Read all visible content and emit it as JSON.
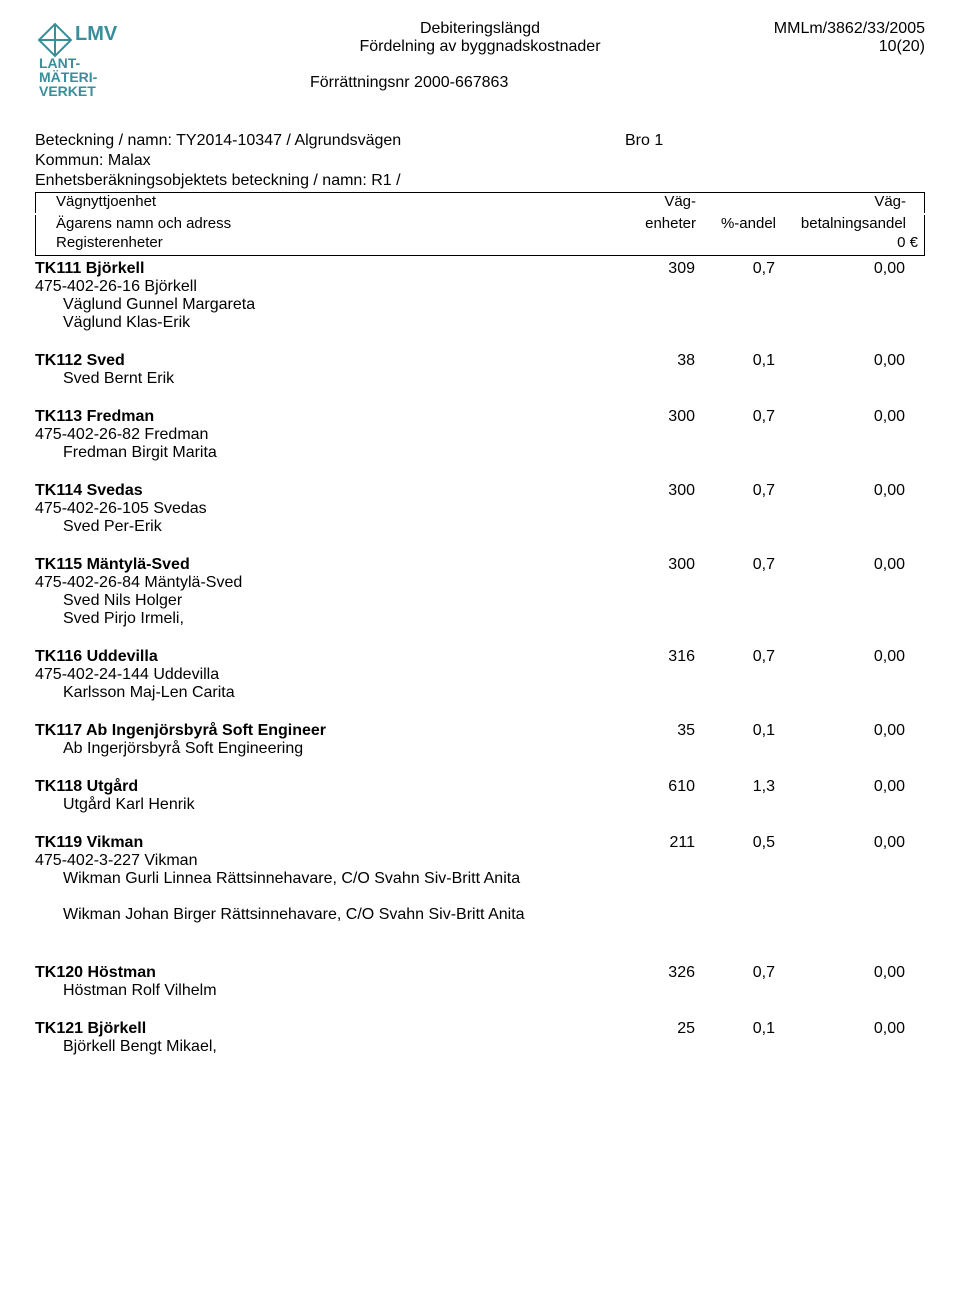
{
  "header": {
    "title1": "Debiteringslängd",
    "title2": "Fördelning av byggnadskostnader",
    "right1": "MMLm/3862/33/2005",
    "right2": "10(20)",
    "case_label": "Förrättningsnr 2000-667863"
  },
  "logo": {
    "line1": "LMV",
    "line2": "LANT-",
    "line3": "MÄTERI-",
    "line4": "VERKET",
    "text_color": "#3a8e9a",
    "shape_color": "#3a8e9a"
  },
  "meta": {
    "beteckning": "Beteckning / namn: TY2014-10347 / Algrundsvägen",
    "bro": "Bro 1",
    "kommun": "Kommun: Malax",
    "enhets": "Enhetsberäkningsobjektets beteckning / namn: R1 /",
    "header_col1a": "Vägnyttjoenhet",
    "header_col1b": "Ägarens namn och adress",
    "header_col2a": "Väg-",
    "header_col2b": "enheter",
    "header_col3a": "",
    "header_col3b": "%-andel",
    "header_col4a": "Väg-",
    "header_col4b": "betalningsandel",
    "register": "Registerenheter",
    "zero": "0 €"
  },
  "entries": [
    {
      "name": "TK111 Björkell",
      "v1": "309",
      "v2": "0,7",
      "v3": "0,00",
      "subs": [
        "475-402-26-16 Björkell"
      ],
      "indents": [
        "Väglund Gunnel Margareta",
        "Väglund Klas-Erik"
      ]
    },
    {
      "name": "TK112 Sved",
      "v1": "38",
      "v2": "0,1",
      "v3": "0,00",
      "subs": [],
      "indents": [
        "Sved Bernt Erik"
      ]
    },
    {
      "name": "TK113 Fredman",
      "v1": "300",
      "v2": "0,7",
      "v3": "0,00",
      "subs": [
        "475-402-26-82 Fredman"
      ],
      "indents": [
        "Fredman Birgit Marita"
      ]
    },
    {
      "name": "TK114 Svedas",
      "v1": "300",
      "v2": "0,7",
      "v3": "0,00",
      "subs": [
        "475-402-26-105 Svedas"
      ],
      "indents": [
        "Sved Per-Erik"
      ]
    },
    {
      "name": "TK115 Mäntylä-Sved",
      "v1": "300",
      "v2": "0,7",
      "v3": "0,00",
      "subs": [
        "475-402-26-84 Mäntylä-Sved"
      ],
      "indents": [
        "Sved Nils Holger",
        "Sved Pirjo Irmeli,"
      ]
    },
    {
      "name": "TK116 Uddevilla",
      "v1": "316",
      "v2": "0,7",
      "v3": "0,00",
      "subs": [
        "475-402-24-144 Uddevilla"
      ],
      "indents": [
        "Karlsson Maj-Len Carita"
      ]
    },
    {
      "name": "TK117 Ab Ingenjörsbyrå Soft Engineer",
      "v1": "35",
      "v2": "0,1",
      "v3": "0,00",
      "subs": [],
      "indents": [
        "Ab Ingerjörsbyrå Soft Engineering"
      ]
    },
    {
      "name": "TK118 Utgård",
      "v1": "610",
      "v2": "1,3",
      "v3": "0,00",
      "subs": [],
      "indents": [
        "Utgård Karl Henrik"
      ]
    },
    {
      "name": "TK119 Vikman",
      "v1": "211",
      "v2": "0,5",
      "v3": "0,00",
      "subs": [
        "475-402-3-227 Vikman"
      ],
      "indents": [
        "Wikman Gurli Linnea Rättsinnehavare, C/O Svahn Siv-Britt Anita"
      ],
      "extra_indents": [
        "Wikman Johan Birger Rättsinnehavare, C/O Svahn Siv-Britt Anita"
      ],
      "extra_gap": true
    },
    {
      "name": "TK120 Höstman",
      "v1": "326",
      "v2": "0,7",
      "v3": "0,00",
      "subs": [],
      "indents": [
        "Höstman Rolf Vilhelm"
      ],
      "top_gap": true
    },
    {
      "name": "TK121 Björkell",
      "v1": "25",
      "v2": "0,1",
      "v3": "0,00",
      "subs": [],
      "indents": [
        "Björkell Bengt Mikael,"
      ]
    }
  ]
}
